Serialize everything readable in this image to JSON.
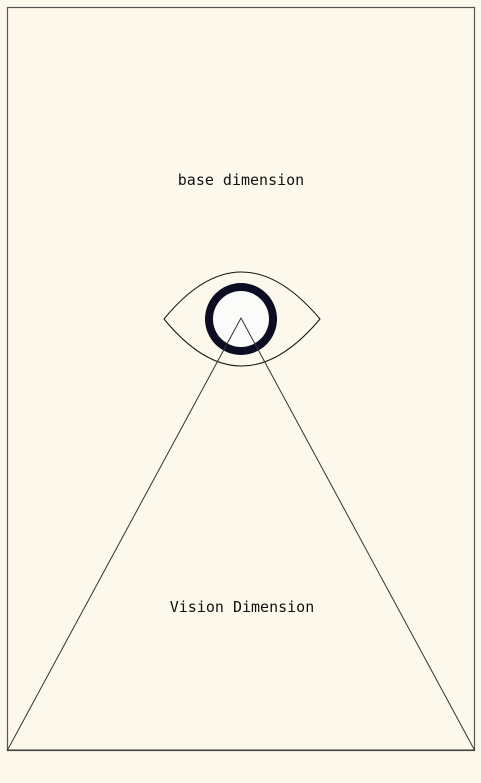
{
  "labels": {
    "base": "base dimension",
    "vision": "Vision Dimension"
  },
  "colors": {
    "background": "#fdf8ec",
    "frame": "#555555",
    "iris": "#0c0c22",
    "pupil": "#fbfbf9",
    "line": "#333333"
  },
  "icons": {
    "center": "eye-icon"
  }
}
